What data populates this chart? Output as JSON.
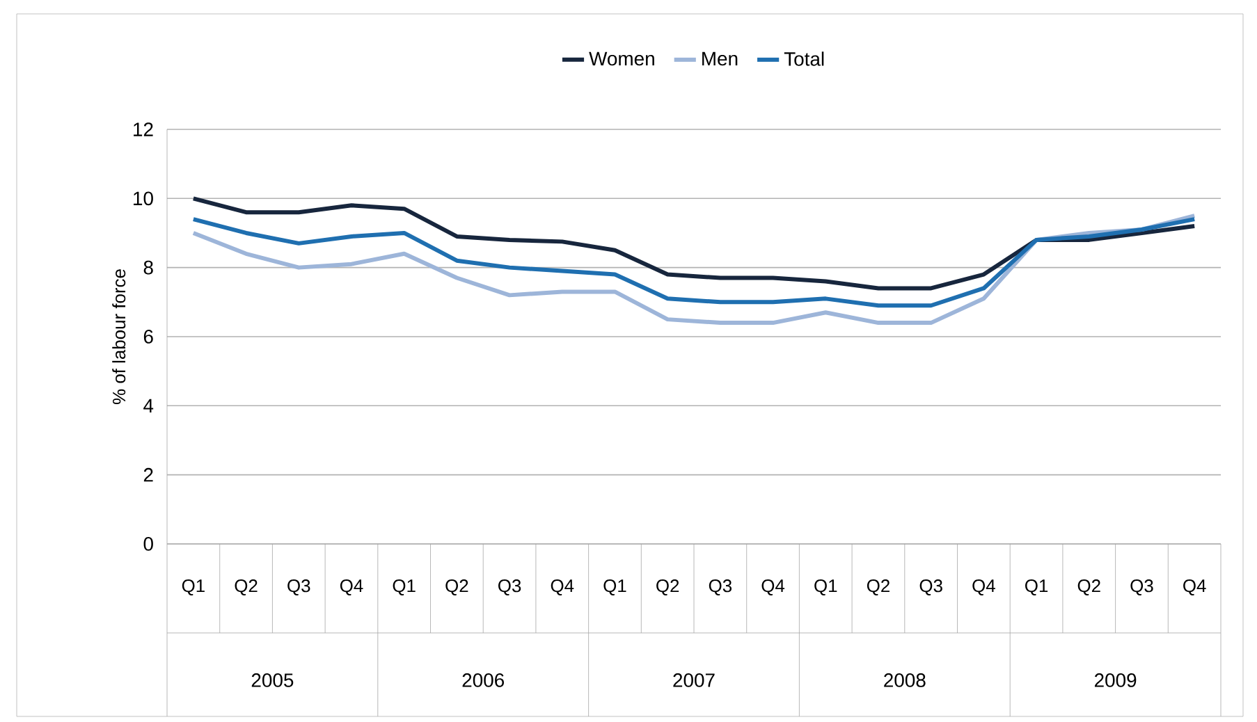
{
  "chart_data": {
    "type": "line",
    "ylabel": "% of labour force",
    "categories": [
      "Q1",
      "Q2",
      "Q3",
      "Q4",
      "Q1",
      "Q2",
      "Q3",
      "Q4",
      "Q1",
      "Q2",
      "Q3",
      "Q4",
      "Q1",
      "Q2",
      "Q3",
      "Q4",
      "Q1",
      "Q2",
      "Q3",
      "Q4"
    ],
    "annotations": [
      "2005",
      "2006",
      "2007",
      "2008",
      "2009"
    ],
    "series": [
      {
        "name": "Women",
        "color": "#17263d",
        "values": [
          10.0,
          9.6,
          9.6,
          9.8,
          9.7,
          8.9,
          8.8,
          8.75,
          8.5,
          7.8,
          7.7,
          7.7,
          7.6,
          7.4,
          7.4,
          7.8,
          8.8,
          8.8,
          9.0,
          9.2
        ]
      },
      {
        "name": "Men",
        "color": "#9db5d9",
        "values": [
          9.0,
          8.4,
          8.0,
          8.1,
          8.4,
          7.7,
          7.2,
          7.3,
          7.3,
          6.5,
          6.4,
          6.4,
          6.7,
          6.4,
          6.4,
          7.1,
          8.8,
          9.0,
          9.1,
          9.5
        ]
      },
      {
        "name": "Total",
        "color": "#1f6fb0",
        "values": [
          9.4,
          9.0,
          8.7,
          8.9,
          9.0,
          8.2,
          8.0,
          7.9,
          7.8,
          7.1,
          7.0,
          7.0,
          7.1,
          6.9,
          6.9,
          7.4,
          8.8,
          8.9,
          9.1,
          9.4
        ]
      }
    ],
    "ylim": [
      0,
      12
    ],
    "yticks": [
      0,
      2,
      4,
      6,
      8,
      10,
      12
    ],
    "grid": "y",
    "legend": "top",
    "marker": "none",
    "line_style": "solid"
  }
}
